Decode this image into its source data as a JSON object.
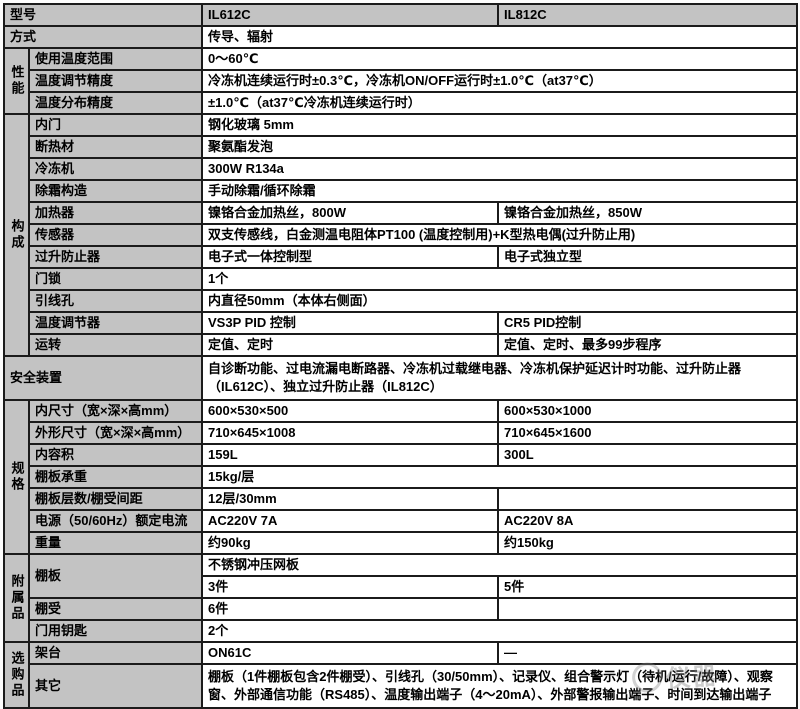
{
  "table": {
    "rows": [
      {
        "header": true,
        "label": "型号",
        "labelColspan": 2,
        "values": [
          "IL612C",
          "IL812C"
        ]
      },
      {
        "label": "方式",
        "labelColspan": 2,
        "span": true,
        "values": [
          "传导、辐射"
        ]
      },
      {
        "group": {
          "text": "性能",
          "rowspan": 3
        },
        "label": "使用温度范围",
        "span": true,
        "values": [
          "0～60℃"
        ]
      },
      {
        "label": "温度调节精度",
        "span": true,
        "values": [
          "冷冻机连续运行时±0.3℃，冷冻机ON/OFF运行时±1.0℃（at37℃）"
        ]
      },
      {
        "label": "温度分布精度",
        "span": true,
        "values": [
          "±1.0℃（at37℃冷冻机连续运行时）"
        ]
      },
      {
        "group": {
          "text": "构成",
          "rowspan": 11
        },
        "label": "内门",
        "span": true,
        "values": [
          "钢化玻璃 5mm"
        ]
      },
      {
        "label": "断热材",
        "span": true,
        "values": [
          "聚氨酯发泡"
        ]
      },
      {
        "label": "冷冻机",
        "span": true,
        "values": [
          "300W R134a"
        ]
      },
      {
        "label": "除霜构造",
        "span": true,
        "values": [
          "手动除霜/循环除霜"
        ]
      },
      {
        "label": "加热器",
        "values": [
          "镍铬合金加热丝，800W",
          "镍铬合金加热丝，850W"
        ]
      },
      {
        "label": "传感器",
        "span": true,
        "values": [
          "双支传感线，白金测温电阻体PT100 (温度控制用)+K型热电偶(过升防止用)"
        ]
      },
      {
        "label": "过升防止器",
        "values": [
          "电子式一体控制型",
          "电子式独立型"
        ]
      },
      {
        "label": "门锁",
        "span": true,
        "values": [
          "1个"
        ]
      },
      {
        "label": "引线孔",
        "span": true,
        "values": [
          "内直径50mm（本体右侧面）"
        ]
      },
      {
        "label": "温度调节器",
        "values": [
          "VS3P PID 控制",
          "CR5 PID控制"
        ]
      },
      {
        "label": "运转",
        "values": [
          "定值、定时",
          "定值、定时、最多99步程序"
        ]
      },
      {
        "label": "安全装置",
        "labelColspan": 2,
        "span": true,
        "tall": true,
        "values": [
          "自诊断功能、过电流漏电断路器、冷冻机过载继电器、冷冻机保护延迟计时功能、过升防止器（IL612C）、独立过升防止器（IL812C）"
        ]
      },
      {
        "group": {
          "text": "规格",
          "rowspan": 7
        },
        "label": "内尺寸（宽×深×高mm）",
        "values": [
          "600×530×500",
          "600×530×1000"
        ]
      },
      {
        "label": "外形尺寸（宽×深×高mm）",
        "values": [
          "710×645×1008",
          "710×645×1600"
        ]
      },
      {
        "label": "内容积",
        "values": [
          "159L",
          "300L"
        ]
      },
      {
        "label": "棚板承重",
        "span": true,
        "values": [
          "15kg/层"
        ]
      },
      {
        "label": "棚板层数/棚受间距",
        "values": [
          "12层/30mm",
          ""
        ]
      },
      {
        "label": "电源（50/60Hz）额定电流",
        "values": [
          "AC220V 7A",
          "AC220V 8A"
        ]
      },
      {
        "label": "重量",
        "values": [
          "约90kg",
          "约150kg"
        ]
      },
      {
        "group": {
          "text": "附属品",
          "rowspan": 4
        },
        "label": "棚板",
        "labelRowspan": 2,
        "span": true,
        "values": [
          "不锈钢冲压网板"
        ]
      },
      {
        "noLabel": true,
        "values": [
          "3件",
          "5件"
        ]
      },
      {
        "label": "棚受",
        "values": [
          "6件",
          ""
        ]
      },
      {
        "label": "门用钥匙",
        "span": true,
        "values": [
          "2个"
        ]
      },
      {
        "group": {
          "text": "选购品",
          "rowspan": 2
        },
        "label": "架台",
        "values": [
          "ON61C",
          "—"
        ]
      },
      {
        "label": "其它",
        "span": true,
        "tall": true,
        "values": [
          "棚板（1件棚板包含2件棚受）、引线孔（30/50mm）、记录仪、组合警示灯（待机/运行/故障）、观察窗、外部通信功能（RS485）、温度输出端子（4～20mA）、外部警报输出端子、时间到达输出端子"
        ]
      }
    ]
  },
  "watermark": {
    "text": "仪器"
  },
  "colors": {
    "label_bg": "#c3c3c3",
    "border": "#1b1b1b",
    "value_bg": "#ffffff"
  }
}
